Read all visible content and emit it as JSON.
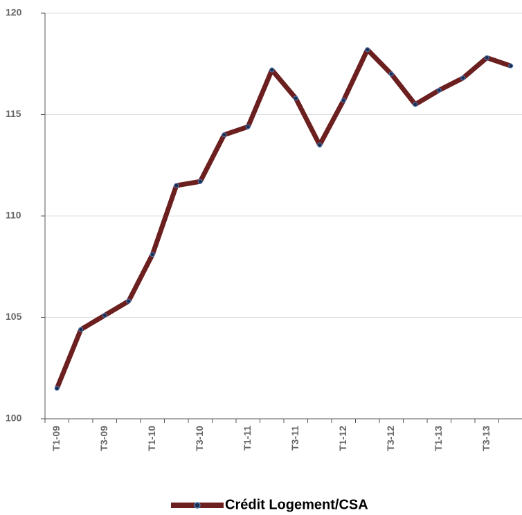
{
  "chart_data": {
    "type": "line",
    "categories": [
      "T1-09",
      null,
      "T3-09",
      null,
      "T1-10",
      null,
      "T3-10",
      null,
      "T1-11",
      null,
      "T3-11",
      null,
      "T1-12",
      null,
      "T3-12",
      null,
      "T1-13",
      null,
      "T3-13",
      null
    ],
    "series": [
      {
        "name": "Crédit Logement/CSA",
        "color": "#6b1f1f",
        "marker_color": "#1f2d4d",
        "values": [
          101.5,
          104.4,
          105.1,
          105.8,
          108.1,
          111.5,
          111.7,
          114.0,
          114.4,
          117.2,
          115.8,
          113.5,
          115.7,
          118.2,
          117.0,
          115.5,
          116.2,
          116.8,
          117.8,
          117.4
        ]
      }
    ],
    "ylim": [
      100,
      120
    ],
    "yticks": [
      100,
      105,
      110,
      115,
      120
    ],
    "grid": true,
    "legend": "bottom"
  }
}
